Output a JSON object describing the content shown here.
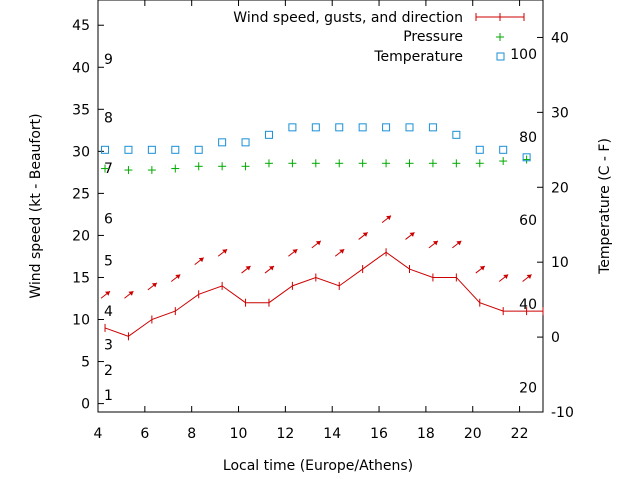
{
  "chart_data": {
    "type": "line",
    "xlabel": "Local time (Europe/Athens)",
    "ylabel_left": "Wind speed (kt - Beaufort)",
    "ylabel_right": "Temperature (C - F)",
    "xlim": [
      4,
      23
    ],
    "ylim_left": [
      -1,
      48
    ],
    "ylim_right": [
      -10,
      45
    ],
    "x_ticks": [
      4,
      6,
      8,
      10,
      12,
      14,
      16,
      18,
      20,
      22
    ],
    "y_ticks_left": [
      0,
      5,
      10,
      15,
      20,
      25,
      30,
      35,
      40,
      45
    ],
    "y_ticks_right": [
      -10,
      0,
      10,
      20,
      30,
      40
    ],
    "beaufort_labels": [
      {
        "label": "1",
        "y": 1
      },
      {
        "label": "2",
        "y": 4
      },
      {
        "label": "3",
        "y": 7
      },
      {
        "label": "4",
        "y": 11
      },
      {
        "label": "5",
        "y": 17
      },
      {
        "label": "6",
        "y": 22
      },
      {
        "label": "7",
        "y": 28
      },
      {
        "label": "8",
        "y": 34
      },
      {
        "label": "9",
        "y": 41
      }
    ],
    "fahrenheit_labels": [
      {
        "label": "20",
        "y": -6.7
      },
      {
        "label": "40",
        "y": 4.4
      },
      {
        "label": "60",
        "y": 15.6
      },
      {
        "label": "80",
        "y": 26.7
      },
      {
        "label": "100",
        "y": 37.8
      }
    ],
    "legend_position": "top-right",
    "series": [
      {
        "name": "Wind speed, gusts, and direction",
        "axis": "left",
        "color": "#cc0000",
        "marker": "plus-line",
        "x": [
          4.3,
          5.3,
          6.3,
          7.3,
          8.3,
          9.3,
          10.3,
          11.3,
          12.3,
          13.3,
          14.3,
          15.3,
          16.3,
          17.3,
          18.3,
          19.3,
          20.3,
          21.3,
          22.3,
          23.0
        ],
        "values": [
          9,
          8,
          10,
          11,
          13,
          14,
          12,
          12,
          14,
          15,
          14,
          16,
          18,
          16,
          15,
          15,
          12,
          11,
          11,
          11
        ]
      },
      {
        "name": "Pressure",
        "axis": "right",
        "color": "#00aa00",
        "marker": "plus",
        "x": [
          4.3,
          5.3,
          6.3,
          7.3,
          8.3,
          9.3,
          10.3,
          11.3,
          12.3,
          13.3,
          14.3,
          15.3,
          16.3,
          17.3,
          18.3,
          19.3,
          20.3,
          21.3,
          22.3
        ],
        "values": [
          22.5,
          22.3,
          22.3,
          22.5,
          22.8,
          22.8,
          22.8,
          23.2,
          23.2,
          23.2,
          23.2,
          23.2,
          23.2,
          23.2,
          23.2,
          23.2,
          23.2,
          23.5,
          23.7
        ]
      },
      {
        "name": "Temperature",
        "axis": "right",
        "color": "#1a8fd6",
        "marker": "square",
        "x": [
          4.3,
          5.3,
          6.3,
          7.3,
          8.3,
          9.3,
          10.3,
          11.3,
          12.3,
          13.3,
          14.3,
          15.3,
          16.3,
          17.3,
          18.3,
          19.3,
          20.3,
          21.3,
          22.3
        ],
        "values": [
          25,
          25,
          25,
          25,
          25,
          26,
          26,
          27,
          28,
          28,
          28,
          28,
          28,
          28,
          28,
          27,
          25,
          25,
          24
        ]
      }
    ],
    "gust_arrows": {
      "color": "#cc0000",
      "x": [
        4.3,
        5.3,
        6.3,
        7.3,
        8.3,
        9.3,
        10.3,
        11.3,
        12.3,
        13.3,
        14.3,
        15.3,
        16.3,
        17.3,
        18.3,
        19.3,
        20.3,
        21.3,
        22.3
      ],
      "values": [
        13,
        13,
        14,
        15,
        17,
        18,
        16,
        16,
        18,
        19,
        18,
        20,
        22,
        20,
        19,
        19,
        16,
        15,
        15
      ]
    }
  }
}
